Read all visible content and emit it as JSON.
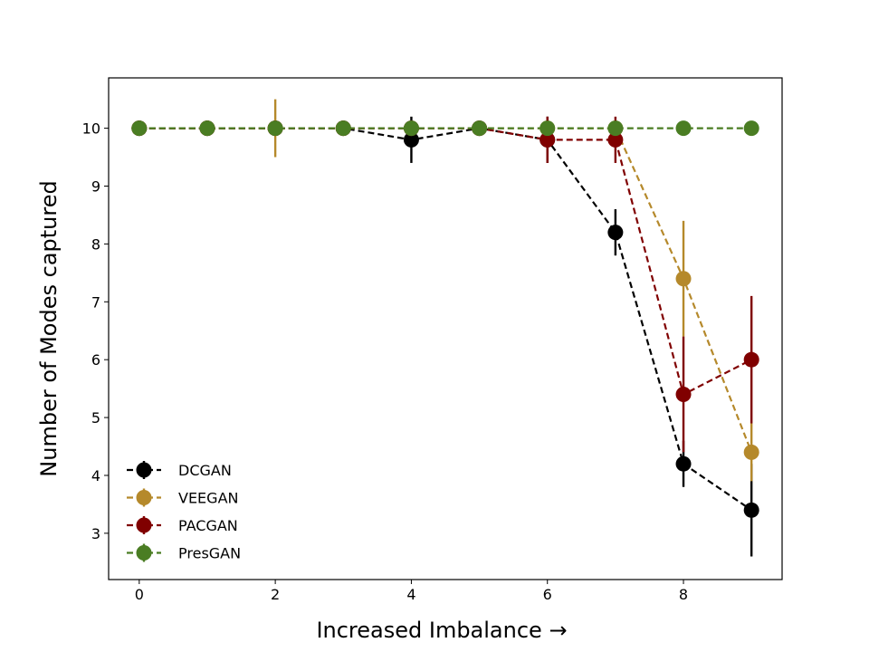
{
  "chart_data": {
    "type": "line",
    "title": "",
    "xlabel": "Increased Imbalance →",
    "ylabel": "Number of Modes captured",
    "xlim": [
      -0.45,
      9.45
    ],
    "ylim": [
      2.2,
      10.87
    ],
    "xticks": [
      0,
      2,
      4,
      6,
      8
    ],
    "yticks": [
      3,
      4,
      5,
      6,
      7,
      8,
      9,
      10
    ],
    "grid": false,
    "legend_position": "lower-left",
    "line_style": "dashed",
    "markers": "circle",
    "error_bars": true,
    "series": [
      {
        "name": "DCGAN",
        "color": "#000000",
        "x": [
          0,
          1,
          2,
          3,
          4,
          5,
          6,
          7,
          8,
          9
        ],
        "y": [
          10,
          10,
          10,
          10,
          9.8,
          10,
          9.8,
          8.2,
          4.2,
          3.4
        ],
        "yerr": [
          0,
          0,
          0,
          0,
          0.4,
          0,
          0.4,
          0.4,
          0.4,
          0.8
        ]
      },
      {
        "name": "VEEGAN",
        "color": "#b5892b",
        "x": [
          0,
          1,
          2,
          3,
          4,
          5,
          6,
          7,
          8,
          9
        ],
        "y": [
          10,
          10,
          10,
          10,
          10,
          10,
          10,
          10,
          7.4,
          4.4
        ],
        "yerr": [
          0,
          0,
          0.5,
          0,
          0,
          0,
          0,
          0,
          1.0,
          0.5
        ]
      },
      {
        "name": "PACGAN",
        "color": "#800000",
        "x": [
          0,
          1,
          2,
          3,
          4,
          5,
          6,
          7,
          8,
          9
        ],
        "y": [
          10,
          10,
          10,
          10,
          10,
          10,
          9.8,
          9.8,
          5.4,
          6.0
        ],
        "yerr": [
          0,
          0,
          0,
          0,
          0,
          0,
          0.4,
          0.4,
          1.0,
          1.1
        ]
      },
      {
        "name": "PresGAN",
        "color": "#4a7d23",
        "x": [
          0,
          1,
          2,
          3,
          4,
          5,
          6,
          7,
          8,
          9
        ],
        "y": [
          10,
          10,
          10,
          10,
          10,
          10,
          10,
          10,
          10,
          10
        ],
        "yerr": [
          0,
          0,
          0,
          0,
          0,
          0,
          0,
          0,
          0,
          0
        ]
      }
    ]
  }
}
